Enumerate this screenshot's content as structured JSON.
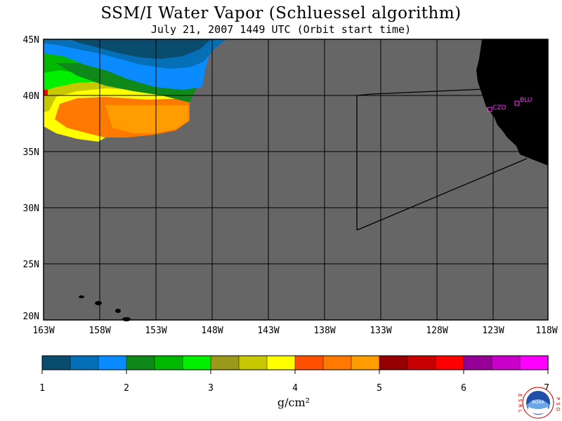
{
  "title": "SSM/I Water Vapor (Schluessel algorithm)",
  "subtitle": "July 21, 2007  1449 UTC  (Orbit start time)",
  "map": {
    "lat_labels": [
      "45N",
      "40N",
      "35N",
      "30N",
      "25N",
      "20N"
    ],
    "lon_labels": [
      "163W",
      "158W",
      "153W",
      "148W",
      "143W",
      "138W",
      "133W",
      "128W",
      "123W",
      "118W"
    ],
    "stations": [
      {
        "name": "CZD"
      },
      {
        "name": "BLU"
      }
    ],
    "colors": {
      "background": "#666666",
      "land": "#000000",
      "grid": "#000000",
      "station": "#ff33ff"
    }
  },
  "colorbar": {
    "labels": [
      "1",
      "2",
      "3",
      "4",
      "5",
      "6",
      "7"
    ],
    "unit": "g/cm²",
    "colors": [
      "#0a4c6e",
      "#0570b8",
      "#0a8bff",
      "#0f8a1a",
      "#00b800",
      "#00f000",
      "#9a9a1a",
      "#c8c800",
      "#ffff00",
      "#ff5000",
      "#ff7800",
      "#ff9c00",
      "#960000",
      "#c80000",
      "#ff0000",
      "#960096",
      "#c800c8",
      "#ff00ff"
    ]
  },
  "logo": {
    "left_text": "ESRL",
    "right_text": "PSD",
    "center_text": "NOAA"
  }
}
